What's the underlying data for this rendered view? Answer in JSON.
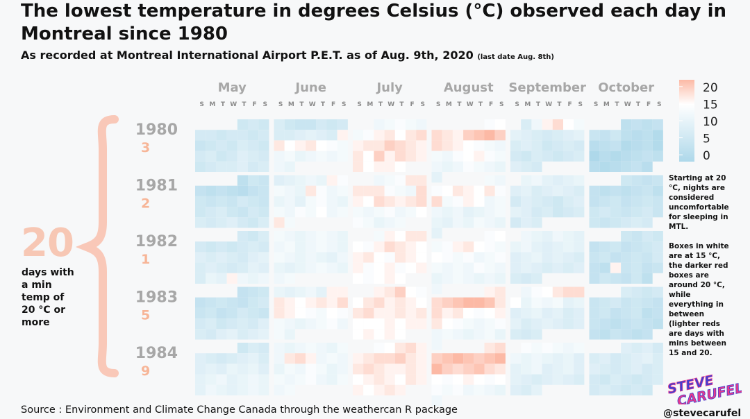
{
  "title": "The lowest temperature in degrees Celsius (°C) observed each day in Montreal since 1980",
  "subtitle": "As recorded at Montreal International Airport P.E.T. as of Aug. 9th, 2020",
  "subtitle_note": "(last date Aug. 8th)",
  "big_count": "20",
  "big_count_label": "days with a min temp of 20 °C or more",
  "notes": [
    "Starting at 20 °C, nights are considered uncomfortable for sleeping in MTL.",
    "Boxes in white are at 15 °C, the darker red boxes are around 20 °C, while everything in between (lighter reds are days with mins between 15 and 20."
  ],
  "source": "Source : Environment and Climate Change Canada through the weathercan R package",
  "logo_text": "STEVE CARUFEL",
  "handle": "@stevecarufel",
  "colors": {
    "cold": "#aed8ea",
    "mid": "#ffffff",
    "warm": "#fcb9a5",
    "year_label": "#a7a7a7",
    "count_label": "#f7b597",
    "brace": "#f9c8b8",
    "logo_pink": "#e8398c",
    "logo_blue": "#3f3fd0"
  },
  "chart_data": {
    "type": "heatmap",
    "months": [
      "May",
      "June",
      "July",
      "August",
      "September",
      "October"
    ],
    "weekdays": [
      "S",
      "M",
      "T",
      "W",
      "T",
      "F",
      "S"
    ],
    "legend": {
      "ticks": [
        20,
        15,
        10,
        5,
        0
      ],
      "range": [
        -2,
        22
      ]
    },
    "years": [
      {
        "year": "1980",
        "count": "3",
        "months": [
          [
            6,
            7,
            6,
            7,
            7,
            6,
            7,
            7,
            6,
            7,
            5,
            6,
            7,
            6,
            8,
            7,
            6,
            7,
            8,
            6,
            7,
            9,
            8,
            7,
            6,
            7,
            8,
            8,
            9,
            7,
            8
          ],
          [
            8,
            6,
            5,
            5,
            7,
            6,
            7,
            8,
            8,
            9,
            10,
            9,
            8,
            16,
            17,
            15,
            16,
            17,
            15,
            14,
            13,
            12,
            13,
            11,
            12,
            13,
            12,
            13,
            12,
            11
          ],
          [
            12,
            13,
            14,
            13,
            12,
            13,
            14,
            16,
            17,
            15,
            17,
            18,
            16,
            17,
            17,
            19,
            18,
            17,
            16,
            17,
            15,
            19,
            16,
            18,
            17,
            16,
            17,
            15,
            16,
            16,
            15
          ],
          [
            14,
            15,
            18,
            17,
            16,
            19,
            20,
            21,
            19,
            18,
            17,
            16,
            15,
            14,
            13,
            12,
            13,
            12,
            14,
            15,
            16,
            14,
            13,
            12,
            11,
            12,
            14,
            13,
            12,
            11,
            10
          ],
          [
            8,
            12,
            16,
            18,
            15,
            13,
            10,
            9,
            8,
            7,
            8,
            9,
            10,
            8,
            9,
            8,
            6,
            7,
            8,
            7,
            7,
            6,
            8,
            7,
            6,
            7,
            8,
            9,
            8,
            7
          ],
          [
            3,
            4,
            3,
            4,
            5,
            4,
            6,
            3,
            2,
            3,
            1,
            2,
            3,
            4,
            1,
            2,
            3,
            1,
            0,
            2,
            1,
            2,
            3,
            4,
            3,
            2,
            1,
            2,
            3,
            4,
            2
          ]
        ]
      },
      {
        "year": "1981",
        "count": "2",
        "months": [
          [
            3,
            6,
            5,
            4,
            3,
            4,
            3,
            2,
            4,
            5,
            6,
            5,
            6,
            5,
            7,
            6,
            5,
            6,
            7,
            8,
            6,
            5,
            7,
            6,
            8,
            7,
            8,
            9,
            7,
            6,
            8
          ],
          [
            9,
            10,
            11,
            12,
            11,
            16,
            14,
            13,
            12,
            11,
            17,
            14,
            12,
            13,
            11,
            12,
            10,
            13,
            14,
            12,
            11,
            13,
            12,
            14,
            13,
            15,
            12,
            13,
            17,
            13
          ],
          [
            12,
            13,
            14,
            17,
            17,
            17,
            17,
            17,
            14,
            13,
            12,
            18,
            16,
            15,
            18,
            17,
            16,
            17,
            18,
            13,
            12,
            13,
            14,
            12,
            13,
            15,
            14,
            13,
            11,
            12,
            13
          ],
          [
            13,
            12,
            14,
            15,
            17,
            16,
            15,
            17,
            14,
            18,
            13,
            14,
            16,
            15,
            12,
            13,
            12,
            11,
            12,
            10,
            11,
            12,
            13,
            11,
            10,
            12,
            11,
            13,
            12,
            11,
            10
          ],
          [
            11,
            12,
            10,
            9,
            10,
            11,
            9,
            10,
            8,
            9,
            10,
            9,
            8,
            7,
            9,
            8,
            7,
            6,
            8,
            9,
            10,
            9,
            7,
            8,
            6,
            7,
            8,
            7,
            9,
            8
          ],
          [
            6,
            5,
            4,
            5,
            4,
            3,
            4,
            3,
            4,
            5,
            3,
            4,
            5,
            6,
            4,
            5,
            6,
            5,
            6,
            7,
            6,
            5,
            6,
            7,
            5,
            6,
            5,
            6,
            7,
            8,
            7
          ]
        ]
      },
      {
        "year": "1982",
        "count": "1",
        "months": [
          [
            7,
            6,
            8,
            7,
            6,
            7,
            6,
            7,
            8,
            7,
            9,
            8,
            9,
            8,
            7,
            9,
            10,
            8,
            9,
            8,
            7,
            8,
            10,
            9,
            8,
            11,
            10,
            16,
            12,
            11,
            12
          ],
          [
            13,
            12,
            11,
            12,
            13,
            12,
            11,
            12,
            13,
            11,
            12,
            13,
            12,
            11,
            13,
            12,
            11,
            12,
            11,
            10,
            12,
            11,
            10,
            11,
            12,
            13,
            12,
            11,
            12,
            13
          ],
          [
            13,
            16,
            15,
            17,
            17,
            15,
            14,
            16,
            18,
            17,
            16,
            15,
            16,
            17,
            15,
            14,
            17,
            16,
            15,
            16,
            14,
            15,
            16,
            14,
            15,
            16,
            15,
            14,
            15,
            16,
            15
          ],
          [
            14,
            15,
            13,
            14,
            16,
            17,
            15,
            14,
            13,
            15,
            14,
            13,
            14,
            12,
            13,
            14,
            13,
            12,
            13,
            12,
            14,
            13,
            12,
            11,
            12,
            13,
            12,
            11,
            12,
            11,
            12
          ],
          [
            12,
            11,
            10,
            12,
            11,
            10,
            11,
            12,
            10,
            9,
            10,
            11,
            10,
            9,
            10,
            11,
            9,
            10,
            9,
            8,
            9,
            10,
            9,
            8,
            9,
            8,
            9,
            8,
            7,
            8
          ],
          [
            6,
            5,
            7,
            6,
            4,
            5,
            6,
            4,
            5,
            6,
            7,
            5,
            6,
            4,
            5,
            6,
            5,
            7,
            4,
            3,
            16,
            5,
            6,
            4,
            5,
            4,
            6,
            5,
            4,
            6,
            3
          ]
        ]
      },
      {
        "year": "1983",
        "count": "5",
        "months": [
          [
            4,
            5,
            6,
            4,
            5,
            6,
            5,
            4,
            6,
            7,
            5,
            6,
            4,
            5,
            7,
            6,
            5,
            7,
            8,
            6,
            7,
            8,
            7,
            9,
            8,
            7,
            9,
            10,
            8,
            9,
            10
          ],
          [
            11,
            10,
            11,
            12,
            10,
            16,
            16,
            17,
            16,
            15,
            16,
            17,
            16,
            18,
            17,
            16,
            15,
            14,
            13,
            15,
            14,
            13,
            12,
            11,
            12,
            13,
            14,
            12,
            13,
            11
          ],
          [
            16,
            17,
            19,
            15,
            14,
            15,
            17,
            18,
            16,
            17,
            16,
            15,
            17,
            18,
            16,
            16,
            17,
            16,
            17,
            15,
            15,
            15,
            16,
            15,
            16,
            16,
            15,
            16,
            15,
            16,
            15
          ],
          [
            16,
            17,
            18,
            19,
            20,
            21,
            21,
            20,
            17,
            18,
            16,
            17,
            15,
            14,
            15,
            16,
            17,
            15,
            14,
            13,
            12,
            13,
            14,
            12,
            13,
            12,
            11,
            12,
            13,
            11,
            12
          ],
          [
            12,
            14,
            15,
            17,
            18,
            18,
            15,
            11,
            13,
            12,
            13,
            10,
            11,
            9,
            10,
            11,
            9,
            10,
            8,
            9,
            10,
            8,
            9,
            10,
            9,
            8,
            9,
            8,
            7,
            8
          ],
          [
            8,
            7,
            6,
            7,
            5,
            6,
            7,
            5,
            6,
            5,
            4,
            5,
            6,
            4,
            5,
            6,
            3,
            4,
            5,
            4,
            3,
            4,
            5,
            4,
            3,
            4,
            3,
            5,
            4,
            3,
            4
          ]
        ]
      },
      {
        "year": "1984",
        "count": "9",
        "months": [
          [
            6,
            8,
            7,
            9,
            8,
            7,
            8,
            9,
            10,
            8,
            9,
            10,
            9,
            11,
            10,
            11,
            9,
            10,
            11,
            12,
            10,
            11,
            12,
            11,
            10,
            12,
            11,
            10,
            11,
            12,
            11
          ],
          [
            12,
            11,
            12,
            13,
            12,
            11,
            13,
            12,
            17,
            18,
            16,
            12,
            13,
            12,
            11,
            13,
            12,
            14,
            13,
            11,
            12,
            13,
            12,
            13,
            14,
            12,
            11,
            13,
            12,
            13
          ],
          [
            14,
            15,
            17,
            18,
            16,
            16,
            17,
            18,
            18,
            19,
            17,
            16,
            17,
            18,
            17,
            16,
            16,
            17,
            16,
            15,
            16,
            17,
            16,
            15,
            17,
            16,
            16,
            15,
            16,
            17,
            16
          ],
          [
            17,
            18,
            19,
            20,
            21,
            20,
            19,
            20,
            21,
            21,
            19,
            18,
            19,
            20,
            18,
            17,
            15,
            14,
            15,
            16,
            15,
            14,
            15,
            14,
            13,
            14,
            12,
            13,
            12,
            11,
            12
          ],
          [
            14,
            13,
            14,
            13,
            12,
            13,
            12,
            11,
            12,
            11,
            10,
            11,
            9,
            10,
            11,
            12,
            9,
            10,
            11,
            9,
            10,
            9,
            8,
            9,
            10,
            9,
            8,
            9,
            8,
            10
          ],
          [
            9,
            8,
            9,
            7,
            8,
            9,
            7,
            8,
            9,
            10,
            8,
            9,
            8,
            7,
            8,
            9,
            7,
            8,
            7,
            6,
            8,
            7,
            6,
            7,
            8,
            7,
            8,
            7,
            6,
            7,
            6
          ]
        ]
      }
    ]
  }
}
